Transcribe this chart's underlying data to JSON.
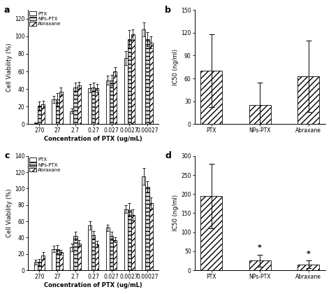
{
  "panel_a": {
    "concentrations": [
      "270",
      "27",
      "2.7",
      "0.27",
      "0.027",
      "0.0027",
      "0.00027"
    ],
    "PTX": [
      1,
      28,
      15,
      41,
      50,
      75,
      108
    ],
    "PTX_err": [
      1,
      4,
      3,
      5,
      5,
      8,
      8
    ],
    "NPs_PTX": [
      21,
      28,
      42,
      42,
      50,
      97,
      97
    ],
    "NPs_PTX_err": [
      5,
      7,
      5,
      5,
      6,
      10,
      8
    ],
    "Abraxane": [
      23,
      37,
      44,
      41,
      60,
      102,
      93
    ],
    "Abraxane_err": [
      4,
      5,
      4,
      5,
      5,
      6,
      7
    ],
    "ylabel": "Cell Viability (%)",
    "xlabel": "Concentration of PTX (ug/mL)",
    "ylim": [
      0,
      130
    ],
    "yticks": [
      0,
      20,
      40,
      60,
      80,
      100,
      120
    ],
    "label": "a"
  },
  "panel_b": {
    "categories": [
      "PTX",
      "NPs-PTX",
      "Abraxane"
    ],
    "values": [
      70,
      25,
      63
    ],
    "errors": [
      48,
      30,
      47
    ],
    "ylabel": "IC50 (ng/ml)",
    "ylim": [
      0,
      150
    ],
    "yticks": [
      0,
      30,
      60,
      90,
      120,
      150
    ],
    "label": "b"
  },
  "panel_c": {
    "concentrations": [
      "270",
      "27",
      "2.7",
      "0.27",
      "0.027",
      "0.0027",
      "0.00027"
    ],
    "PTX": [
      10,
      26,
      28,
      55,
      52,
      75,
      115
    ],
    "PTX_err": [
      3,
      4,
      5,
      5,
      4,
      5,
      10
    ],
    "NPs_PTX": [
      10,
      26,
      42,
      43,
      42,
      74,
      102
    ],
    "NPs_PTX_err": [
      4,
      5,
      5,
      5,
      5,
      8,
      7
    ],
    "Abraxane": [
      18,
      22,
      33,
      32,
      37,
      68,
      82
    ],
    "Abraxane_err": [
      4,
      3,
      4,
      4,
      3,
      7,
      7
    ],
    "ylabel": "Cell Viability (%)",
    "xlabel": "Concentration of PTX (ug/mL)",
    "ylim": [
      0,
      140
    ],
    "yticks": [
      0,
      20,
      40,
      60,
      80,
      100,
      120,
      140
    ],
    "label": "c"
  },
  "panel_d": {
    "categories": [
      "PTX",
      "NPs-PTX",
      "Abraxane"
    ],
    "values": [
      195,
      25,
      15
    ],
    "errors": [
      85,
      15,
      10
    ],
    "ylabel": "IC50 (ng/ml)",
    "ylim": [
      0,
      300
    ],
    "yticks": [
      0,
      50,
      100,
      150,
      200,
      250,
      300
    ],
    "label": "d",
    "stars": [
      false,
      true,
      true
    ]
  }
}
